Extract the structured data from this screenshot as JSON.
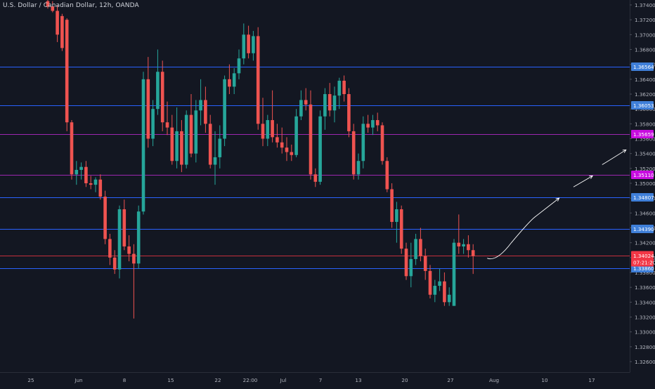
{
  "header": {
    "symbol_title": "U.S. Dollar / Canadian Dollar, 12h, OANDA"
  },
  "colors": {
    "background": "#131722",
    "up": "#26a69a",
    "down": "#ef5350",
    "axis_text": "#b2b5be",
    "level_blue": "#2962ff",
    "level_purple": "#9c27b0",
    "level_red": "#f23645",
    "drawing": "#ffffff"
  },
  "chart_data": {
    "type": "candlestick",
    "title": "U.S. Dollar / Canadian Dollar, 12h, OANDA",
    "ylim": [
      1.3245,
      1.375
    ],
    "y_ticks": [
      "1.37400",
      "1.37200",
      "1.37000",
      "1.36800",
      "1.36600",
      "1.36400",
      "1.36200",
      "1.36000",
      "1.35800",
      "1.35600",
      "1.35400",
      "1.35200",
      "1.35000",
      "1.34800",
      "1.34600",
      "1.34400",
      "1.34200",
      "1.34000",
      "1.33800",
      "1.33600",
      "1.33400",
      "1.33200",
      "1.33000",
      "1.32800",
      "1.32600"
    ],
    "x_ticks": [
      "25",
      "Jun",
      "8",
      "15",
      "22",
      "22:00",
      "Jul",
      "7",
      "13",
      "20",
      "27",
      "Aug",
      "10",
      "17"
    ],
    "grid": false,
    "levels": [
      {
        "label": "1.36564",
        "value": 1.36564,
        "color": "blue"
      },
      {
        "label": "1.36053",
        "value": 1.36053,
        "color": "blue"
      },
      {
        "label": "1.35659",
        "value": 1.35659,
        "color": "purple"
      },
      {
        "label": "1.35110",
        "value": 1.3511,
        "color": "purple"
      },
      {
        "label": "1.34807",
        "value": 1.34807,
        "color": "blue"
      },
      {
        "label": "1.34390",
        "value": 1.3439,
        "color": "blue"
      },
      {
        "label": "1.33860",
        "value": 1.3386,
        "color": "blue"
      }
    ],
    "current_price": {
      "label": "1.34024",
      "value": 1.34024,
      "countdown": "07:21:20"
    },
    "candles": [
      {
        "o": 1.3745,
        "h": 1.375,
        "l": 1.3735,
        "c": 1.3738
      },
      {
        "o": 1.3738,
        "h": 1.3745,
        "l": 1.373,
        "c": 1.3732
      },
      {
        "o": 1.3732,
        "h": 1.374,
        "l": 1.369,
        "c": 1.37
      },
      {
        "o": 1.3725,
        "h": 1.3728,
        "l": 1.3678,
        "c": 1.3682
      },
      {
        "o": 1.372,
        "h": 1.3722,
        "l": 1.357,
        "c": 1.3582
      },
      {
        "o": 1.3582,
        "h": 1.3585,
        "l": 1.3505,
        "c": 1.3512
      },
      {
        "o": 1.3512,
        "h": 1.353,
        "l": 1.3498,
        "c": 1.3518
      },
      {
        "o": 1.3518,
        "h": 1.3528,
        "l": 1.3505,
        "c": 1.3522
      },
      {
        "o": 1.3522,
        "h": 1.353,
        "l": 1.3495,
        "c": 1.35
      },
      {
        "o": 1.35,
        "h": 1.351,
        "l": 1.3492,
        "c": 1.3498
      },
      {
        "o": 1.3498,
        "h": 1.3508,
        "l": 1.3488,
        "c": 1.3505
      },
      {
        "o": 1.3505,
        "h": 1.3512,
        "l": 1.3478,
        "c": 1.3482
      },
      {
        "o": 1.3482,
        "h": 1.349,
        "l": 1.3418,
        "c": 1.3425
      },
      {
        "o": 1.3425,
        "h": 1.3432,
        "l": 1.339,
        "c": 1.34
      },
      {
        "o": 1.34,
        "h": 1.341,
        "l": 1.3378,
        "c": 1.3384
      },
      {
        "o": 1.3384,
        "h": 1.347,
        "l": 1.3372,
        "c": 1.3465
      },
      {
        "o": 1.3465,
        "h": 1.3478,
        "l": 1.341,
        "c": 1.3415
      },
      {
        "o": 1.3415,
        "h": 1.343,
        "l": 1.3395,
        "c": 1.3405
      },
      {
        "o": 1.3405,
        "h": 1.3418,
        "l": 1.3318,
        "c": 1.3392
      },
      {
        "o": 1.3392,
        "h": 1.347,
        "l": 1.3385,
        "c": 1.3462
      },
      {
        "o": 1.3462,
        "h": 1.365,
        "l": 1.3458,
        "c": 1.364
      },
      {
        "o": 1.364,
        "h": 1.367,
        "l": 1.3548,
        "c": 1.356
      },
      {
        "o": 1.356,
        "h": 1.3612,
        "l": 1.355,
        "c": 1.36
      },
      {
        "o": 1.36,
        "h": 1.368,
        "l": 1.3592,
        "c": 1.365
      },
      {
        "o": 1.365,
        "h": 1.3665,
        "l": 1.357,
        "c": 1.3582
      },
      {
        "o": 1.3582,
        "h": 1.361,
        "l": 1.3565,
        "c": 1.3575
      },
      {
        "o": 1.3575,
        "h": 1.3592,
        "l": 1.3525,
        "c": 1.353
      },
      {
        "o": 1.353,
        "h": 1.3602,
        "l": 1.352,
        "c": 1.357
      },
      {
        "o": 1.357,
        "h": 1.3585,
        "l": 1.3515,
        "c": 1.3525
      },
      {
        "o": 1.3525,
        "h": 1.3598,
        "l": 1.352,
        "c": 1.3592
      },
      {
        "o": 1.3592,
        "h": 1.362,
        "l": 1.3535,
        "c": 1.354
      },
      {
        "o": 1.354,
        "h": 1.3612,
        "l": 1.3528,
        "c": 1.3598
      },
      {
        "o": 1.3598,
        "h": 1.364,
        "l": 1.3578,
        "c": 1.3612
      },
      {
        "o": 1.3612,
        "h": 1.363,
        "l": 1.3568,
        "c": 1.358
      },
      {
        "o": 1.358,
        "h": 1.3592,
        "l": 1.352,
        "c": 1.3525
      },
      {
        "o": 1.3525,
        "h": 1.357,
        "l": 1.3498,
        "c": 1.3535
      },
      {
        "o": 1.3535,
        "h": 1.3578,
        "l": 1.352,
        "c": 1.356
      },
      {
        "o": 1.356,
        "h": 1.3645,
        "l": 1.355,
        "c": 1.364
      },
      {
        "o": 1.364,
        "h": 1.366,
        "l": 1.362,
        "c": 1.363
      },
      {
        "o": 1.363,
        "h": 1.3655,
        "l": 1.362,
        "c": 1.3648
      },
      {
        "o": 1.3648,
        "h": 1.368,
        "l": 1.364,
        "c": 1.3668
      },
      {
        "o": 1.3668,
        "h": 1.3715,
        "l": 1.366,
        "c": 1.37
      },
      {
        "o": 1.37,
        "h": 1.3712,
        "l": 1.3668,
        "c": 1.3675
      },
      {
        "o": 1.3675,
        "h": 1.3705,
        "l": 1.3665,
        "c": 1.3698
      },
      {
        "o": 1.3698,
        "h": 1.371,
        "l": 1.3572,
        "c": 1.358
      },
      {
        "o": 1.358,
        "h": 1.3615,
        "l": 1.355,
        "c": 1.356
      },
      {
        "o": 1.356,
        "h": 1.3592,
        "l": 1.355,
        "c": 1.3585
      },
      {
        "o": 1.3585,
        "h": 1.3625,
        "l": 1.3555,
        "c": 1.3562
      },
      {
        "o": 1.3562,
        "h": 1.358,
        "l": 1.3548,
        "c": 1.3555
      },
      {
        "o": 1.3555,
        "h": 1.3575,
        "l": 1.354,
        "c": 1.3548
      },
      {
        "o": 1.3548,
        "h": 1.3562,
        "l": 1.353,
        "c": 1.3542
      },
      {
        "o": 1.3542,
        "h": 1.3552,
        "l": 1.353,
        "c": 1.3538
      },
      {
        "o": 1.3538,
        "h": 1.36,
        "l": 1.3535,
        "c": 1.359
      },
      {
        "o": 1.359,
        "h": 1.3625,
        "l": 1.3585,
        "c": 1.3612
      },
      {
        "o": 1.3612,
        "h": 1.3628,
        "l": 1.3598,
        "c": 1.3606
      },
      {
        "o": 1.3606,
        "h": 1.3625,
        "l": 1.3505,
        "c": 1.3512
      },
      {
        "o": 1.3512,
        "h": 1.352,
        "l": 1.3495,
        "c": 1.3502
      },
      {
        "o": 1.3502,
        "h": 1.3598,
        "l": 1.3498,
        "c": 1.359
      },
      {
        "o": 1.359,
        "h": 1.3628,
        "l": 1.3572,
        "c": 1.362
      },
      {
        "o": 1.362,
        "h": 1.3635,
        "l": 1.359,
        "c": 1.3598
      },
      {
        "o": 1.3598,
        "h": 1.363,
        "l": 1.3582,
        "c": 1.3618
      },
      {
        "o": 1.3618,
        "h": 1.3642,
        "l": 1.36,
        "c": 1.3638
      },
      {
        "o": 1.3638,
        "h": 1.3645,
        "l": 1.361,
        "c": 1.362
      },
      {
        "o": 1.362,
        "h": 1.3628,
        "l": 1.3562,
        "c": 1.357
      },
      {
        "o": 1.357,
        "h": 1.358,
        "l": 1.3505,
        "c": 1.3512
      },
      {
        "o": 1.3512,
        "h": 1.354,
        "l": 1.3505,
        "c": 1.353
      },
      {
        "o": 1.353,
        "h": 1.359,
        "l": 1.352,
        "c": 1.358
      },
      {
        "o": 1.358,
        "h": 1.3592,
        "l": 1.3568,
        "c": 1.3575
      },
      {
        "o": 1.3575,
        "h": 1.3592,
        "l": 1.3565,
        "c": 1.3585
      },
      {
        "o": 1.3585,
        "h": 1.3595,
        "l": 1.357,
        "c": 1.3578
      },
      {
        "o": 1.3578,
        "h": 1.3582,
        "l": 1.3525,
        "c": 1.353
      },
      {
        "o": 1.353,
        "h": 1.3535,
        "l": 1.3488,
        "c": 1.3492
      },
      {
        "o": 1.3492,
        "h": 1.35,
        "l": 1.344,
        "c": 1.3448
      },
      {
        "o": 1.3448,
        "h": 1.3475,
        "l": 1.342,
        "c": 1.3465
      },
      {
        "o": 1.3465,
        "h": 1.347,
        "l": 1.3405,
        "c": 1.3412
      },
      {
        "o": 1.3412,
        "h": 1.342,
        "l": 1.337,
        "c": 1.3375
      },
      {
        "o": 1.3375,
        "h": 1.342,
        "l": 1.336,
        "c": 1.3398
      },
      {
        "o": 1.3398,
        "h": 1.3432,
        "l": 1.339,
        "c": 1.3425
      },
      {
        "o": 1.3425,
        "h": 1.344,
        "l": 1.3395,
        "c": 1.3402
      },
      {
        "o": 1.3402,
        "h": 1.3412,
        "l": 1.337,
        "c": 1.3382
      },
      {
        "o": 1.3382,
        "h": 1.339,
        "l": 1.3345,
        "c": 1.335
      },
      {
        "o": 1.335,
        "h": 1.337,
        "l": 1.334,
        "c": 1.3362
      },
      {
        "o": 1.3362,
        "h": 1.3385,
        "l": 1.3355,
        "c": 1.3368
      },
      {
        "o": 1.3368,
        "h": 1.338,
        "l": 1.3335,
        "c": 1.334
      },
      {
        "o": 1.334,
        "h": 1.336,
        "l": 1.3335,
        "c": 1.335
      },
      {
        "o": 1.3335,
        "h": 1.3425,
        "l": 1.3335,
        "c": 1.342
      },
      {
        "o": 1.342,
        "h": 1.3458,
        "l": 1.3405,
        "c": 1.3415
      },
      {
        "o": 1.3415,
        "h": 1.3425,
        "l": 1.3405,
        "c": 1.3418
      },
      {
        "o": 1.3418,
        "h": 1.343,
        "l": 1.34,
        "c": 1.341
      },
      {
        "o": 1.341,
        "h": 1.3418,
        "l": 1.3378,
        "c": 1.3402
      }
    ],
    "projection": [
      {
        "i": 92,
        "price": 1.3399
      },
      {
        "i": 94,
        "price": 1.34
      },
      {
        "i": 97,
        "price": 1.342
      },
      {
        "i": 102,
        "price": 1.3455
      },
      {
        "i": 107,
        "price": 1.348
      },
      {
        "i": 110,
        "price": 1.3495
      },
      {
        "i": 114,
        "price": 1.351
      },
      {
        "i": 116,
        "price": 1.3525
      },
      {
        "i": 121,
        "price": 1.3545
      }
    ]
  }
}
